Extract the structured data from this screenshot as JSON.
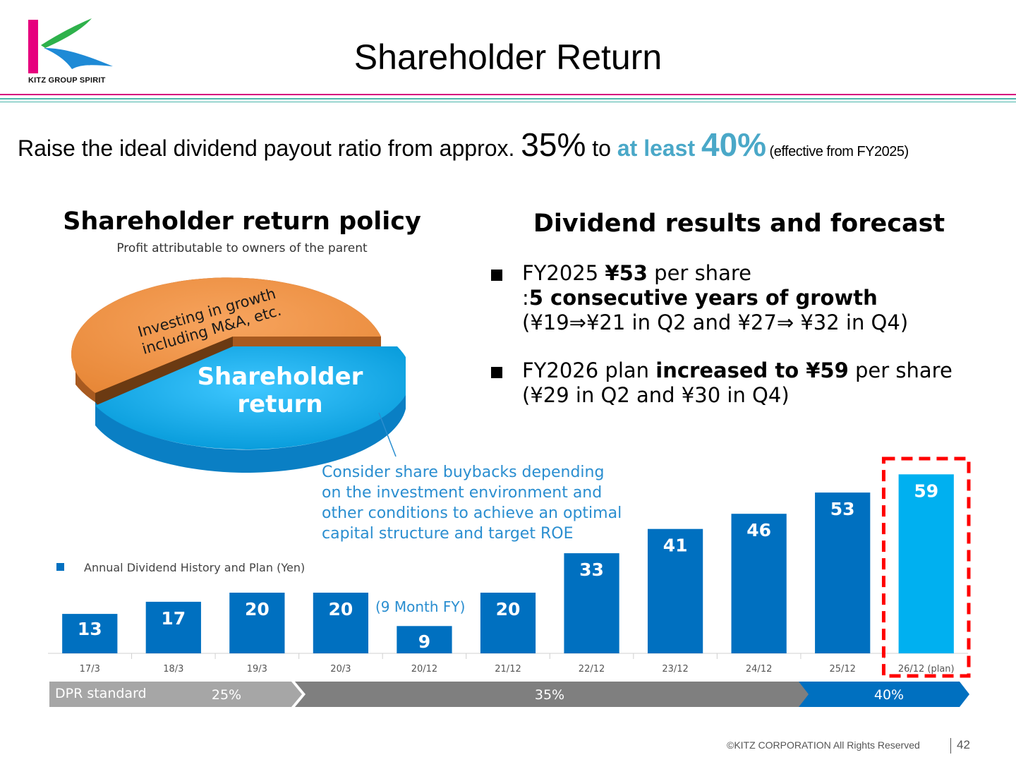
{
  "header": {
    "logo_text": "KITZ GROUP SPIRIT",
    "title": "Shareholder Return"
  },
  "headline": {
    "prefix": "Raise the ideal dividend payout ratio from approx. ",
    "from_value": "35%",
    "to_word": " to ",
    "at_least": "at least ",
    "to_value": "40%",
    "effective": "(effective from FY2025)"
  },
  "policy": {
    "title": "Shareholder return policy",
    "subtitle": "Profit attributable to owners of the parent",
    "pie_label_growth_line1": "Investing in growth",
    "pie_label_growth_line2": "including M&A, etc.",
    "pie_label_return_line1": "Shareholder",
    "pie_label_return_line2": "return",
    "buyback_lines": [
      "Consider share buybacks depending",
      "on the investment environment and",
      "other conditions to achieve an optimal",
      "capital structure and target ROE"
    ]
  },
  "forecast": {
    "title": "Dividend results and forecast",
    "bullet1": {
      "line1_a": "FY2025 ",
      "line1_b": "¥53",
      "line1_c": " per share",
      "line2_a": ":",
      "line2_b": "5 consecutive years of growth",
      "line3": "(¥19⇒¥21 in Q2 and ¥27⇒ ¥32 in Q4)"
    },
    "bullet2": {
      "line1_a": "FY2026 plan ",
      "line1_b": "increased to ¥59",
      "line1_c": " per share",
      "line2": "(¥29 in Q2 and ¥30 in Q4)"
    }
  },
  "chart_data": {
    "type": "bar",
    "legend": "Annual Dividend History and Plan (Yen)",
    "categories": [
      "17/3",
      "18/3",
      "19/3",
      "20/3",
      "20/12",
      "21/12",
      "22/12",
      "23/12",
      "24/12",
      "25/12",
      "26/12 (plan)"
    ],
    "values": [
      13,
      17,
      20,
      20,
      9,
      20,
      33,
      41,
      46,
      53,
      59
    ],
    "annotation": "(9 Month FY)",
    "colors": {
      "actual": "#0070c0",
      "plan": "#00b0f0",
      "highlight_box": "#ff0000"
    },
    "legend_position": "top-left"
  },
  "dpr": {
    "label": "DPR standard",
    "segments": [
      {
        "text": "25%",
        "color": "#a6a6a6"
      },
      {
        "text": "35%",
        "color": "#7f7f7f"
      },
      {
        "text": "40%",
        "color": "#0070c0"
      }
    ]
  },
  "footer": {
    "copyright": "©KITZ CORPORATION All Rights Reserved",
    "page_number": "42"
  },
  "colors": {
    "accent_teal": "#4aa8c8",
    "pie_orange": "#f0954a",
    "pie_blue": "#00aeef",
    "callout_blue": "#2a8ed0",
    "rule_pink": "#d6007e",
    "rule_teal": "#4db6ac"
  }
}
